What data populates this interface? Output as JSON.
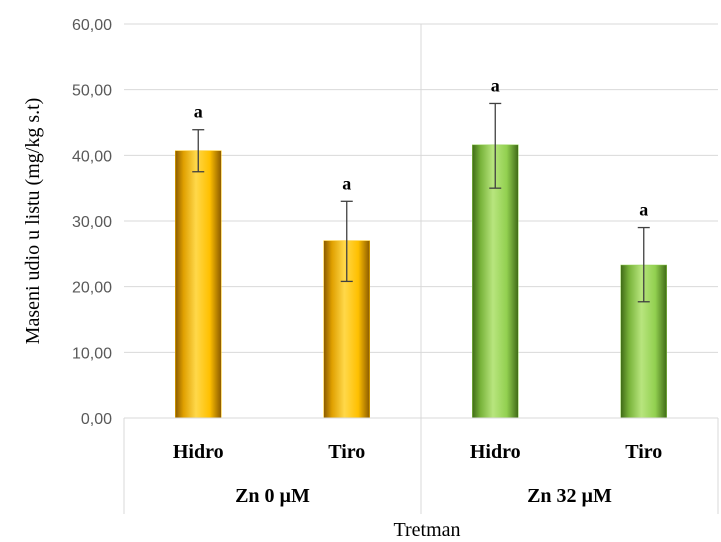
{
  "chart_data": {
    "type": "bar",
    "title": "",
    "xlabel": "Tretman",
    "ylabel": "Maseni udio u listu (mg/kg s.t)",
    "ylim": [
      0,
      60
    ],
    "yticks": [
      "0,00",
      "10,00",
      "20,00",
      "30,00",
      "40,00",
      "50,00",
      "60,00"
    ],
    "grid": true,
    "groups": [
      {
        "label": "Zn 0 µM",
        "color": "#FFC000",
        "bars": [
          {
            "category": "Hidro",
            "value": 40.7,
            "err_low": 37.5,
            "err_high": 43.9,
            "sig": "a"
          },
          {
            "category": "Tiro",
            "value": 27.0,
            "err_low": 20.8,
            "err_high": 33.0,
            "sig": "a"
          }
        ]
      },
      {
        "label": "Zn 32 µM",
        "color": "#92D050",
        "bars": [
          {
            "category": "Hidro",
            "value": 41.6,
            "err_low": 35.0,
            "err_high": 47.9,
            "sig": "a"
          },
          {
            "category": "Tiro",
            "value": 23.3,
            "err_low": 17.7,
            "err_high": 29.0,
            "sig": "a"
          }
        ]
      }
    ]
  }
}
